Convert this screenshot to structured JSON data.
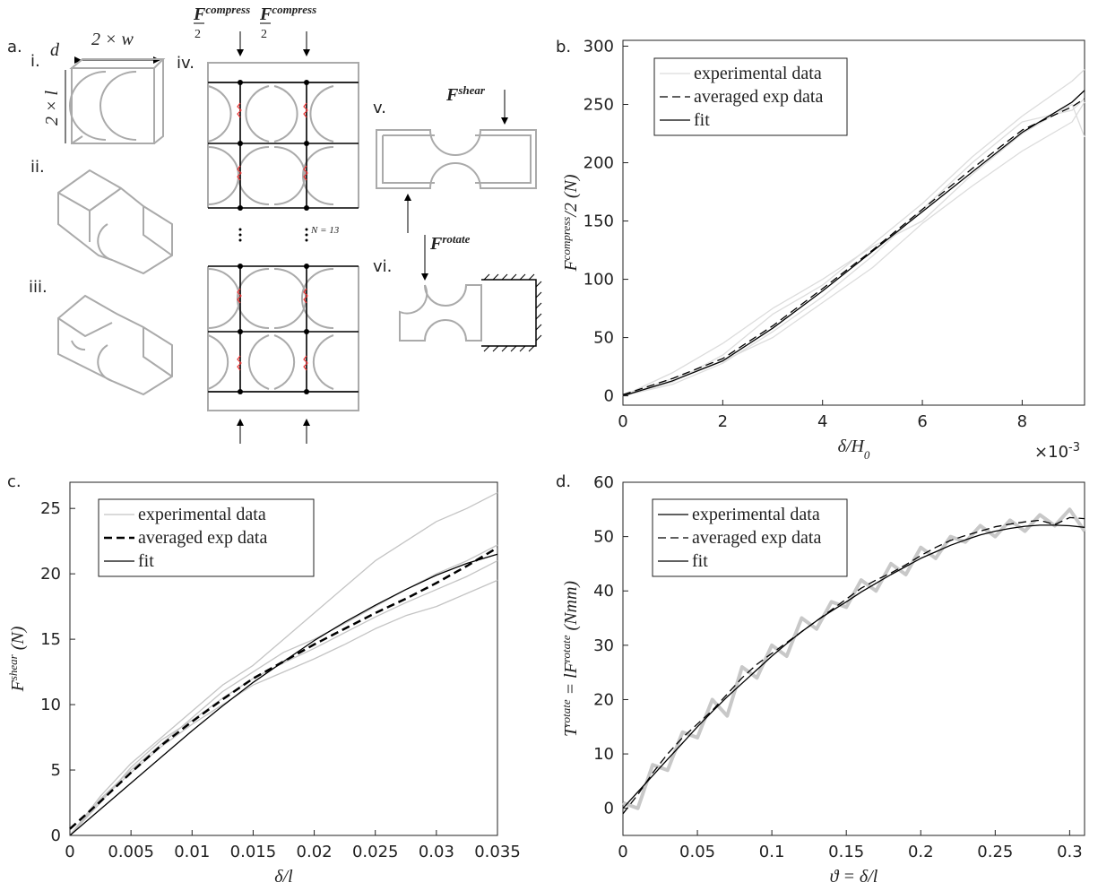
{
  "diagram": {
    "panel": "a.",
    "steps": [
      "i.",
      "ii.",
      "iii.",
      "iv.",
      "v.",
      "vi."
    ],
    "depth": "d",
    "width": "2 × w",
    "length": "2 × l",
    "compress_force": {
      "symbol": "F",
      "sup": "compress",
      "denominator": "2"
    },
    "shear_force": {
      "symbol": "F",
      "sup": "shear"
    },
    "rotate_force": {
      "symbol": "F",
      "sup": "rotate"
    },
    "cell_count": "N = 13"
  },
  "chart_data": [
    {
      "type": "line",
      "panel": "b.",
      "xlabel": [
        {
          "text": "δ/H"
        },
        {
          "text": "0",
          "sub": true
        }
      ],
      "ylabel": [
        {
          "text": "F"
        },
        {
          "text": "compress",
          "sup": true
        },
        {
          "text": "/2  (N)"
        }
      ],
      "x_multiplier": [
        {
          "text": "×10"
        },
        {
          "text": "-3",
          "sup": true
        }
      ],
      "xlim": [
        0,
        9.25
      ],
      "ylim": [
        -8,
        305
      ],
      "xticks": [
        0,
        2,
        4,
        6,
        8
      ],
      "yticks": [
        0,
        50,
        100,
        150,
        200,
        250,
        300
      ],
      "x": [
        0,
        1,
        2,
        3,
        4,
        5,
        6,
        7,
        8,
        9,
        9.25
      ],
      "series": [
        {
          "name": "experimental data",
          "color": "#dcdcdc",
          "values": [
            0,
            12,
            35,
            70,
            95,
            130,
            165,
            205,
            240,
            270,
            280
          ]
        },
        {
          "color": "#dcdcdc",
          "values": [
            0,
            20,
            45,
            75,
            100,
            128,
            150,
            190,
            225,
            250,
            222
          ]
        },
        {
          "color": "#dcdcdc",
          "values": [
            0,
            10,
            28,
            55,
            85,
            120,
            160,
            200,
            235,
            245,
            255
          ]
        },
        {
          "color": "#dcdcdc",
          "values": [
            0,
            15,
            30,
            50,
            80,
            110,
            148,
            180,
            210,
            235,
            252
          ]
        },
        {
          "name": "averaged exp data",
          "color": "#000000",
          "dash": true,
          "values": [
            1,
            15,
            32,
            60,
            92,
            125,
            160,
            195,
            228,
            248,
            255
          ]
        },
        {
          "name": "fit",
          "color": "#000000",
          "values": [
            0,
            13,
            30,
            58,
            90,
            124,
            158,
            192,
            226,
            252,
            262
          ]
        }
      ]
    },
    {
      "type": "line",
      "panel": "c.",
      "xlabel": [
        {
          "text": "δ/l"
        }
      ],
      "ylabel": [
        {
          "text": "F"
        },
        {
          "text": "shear",
          "sup": true
        },
        {
          "text": "  (N)"
        }
      ],
      "xlim": [
        0,
        0.035
      ],
      "ylim": [
        0,
        27
      ],
      "xticks": [
        0,
        0.005,
        0.01,
        0.015,
        0.02,
        0.025,
        0.03,
        0.035
      ],
      "yticks": [
        0,
        5,
        10,
        15,
        20,
        25
      ],
      "x": [
        0,
        0.0025,
        0.005,
        0.0075,
        0.01,
        0.0125,
        0.015,
        0.0175,
        0.02,
        0.0225,
        0.025,
        0.0275,
        0.03,
        0.0325,
        0.035
      ],
      "series": [
        {
          "name": "experimental data",
          "color": "#c4c4c4",
          "values": [
            0,
            3,
            5.5,
            7.5,
            9.5,
            11.5,
            13,
            15,
            17,
            19,
            21,
            22.5,
            24,
            25,
            26.2
          ]
        },
        {
          "color": "#c4c4c4",
          "values": [
            0,
            2.8,
            5,
            7,
            9,
            11,
            12.5,
            14,
            15,
            16.2,
            17.5,
            18.8,
            20,
            21,
            22.2
          ]
        },
        {
          "color": "#c4c4c4",
          "values": [
            0,
            2.5,
            5.2,
            7.3,
            8.8,
            10.5,
            12,
            13.2,
            14.3,
            15.5,
            16.7,
            17.8,
            18.8,
            19.8,
            21
          ]
        },
        {
          "color": "#c4c4c4",
          "values": [
            0,
            2.7,
            4.8,
            6.8,
            8.5,
            10,
            11.5,
            12.5,
            13.5,
            14.6,
            15.8,
            16.8,
            17.5,
            18.5,
            19.5
          ]
        },
        {
          "name": "averaged exp data",
          "color": "#000000",
          "dash": true,
          "width": 2.5,
          "values": [
            0.5,
            2.6,
            4.8,
            6.9,
            8.7,
            10.4,
            12,
            13.3,
            14.6,
            15.8,
            17,
            18.1,
            19.3,
            20.6,
            22
          ]
        },
        {
          "name": "fit",
          "color": "#000000",
          "values": [
            0,
            2,
            4,
            6,
            8,
            9.9,
            11.7,
            13.3,
            14.9,
            16.3,
            17.6,
            18.8,
            19.9,
            20.8,
            21.5
          ]
        }
      ]
    },
    {
      "type": "line",
      "panel": "d.",
      "xlabel": [
        {
          "text": "ϑ = δ/l"
        }
      ],
      "ylabel": [
        {
          "text": "T"
        },
        {
          "text": "rotate",
          "sup": true
        },
        {
          "text": " = lF"
        },
        {
          "text": "rotate",
          "sup": true
        },
        {
          "text": "  (Nmm)"
        }
      ],
      "xlim": [
        0,
        0.31
      ],
      "ylim": [
        -5,
        60
      ],
      "xticks": [
        0,
        0.05,
        0.1,
        0.15,
        0.2,
        0.25,
        0.3
      ],
      "yticks": [
        0,
        10,
        20,
        30,
        40,
        50,
        60
      ],
      "x": [
        0,
        0.01,
        0.02,
        0.03,
        0.04,
        0.05,
        0.06,
        0.07,
        0.08,
        0.09,
        0.1,
        0.11,
        0.12,
        0.13,
        0.14,
        0.15,
        0.16,
        0.17,
        0.18,
        0.19,
        0.2,
        0.21,
        0.22,
        0.23,
        0.24,
        0.25,
        0.26,
        0.27,
        0.28,
        0.29,
        0.3,
        0.31
      ],
      "series": [
        {
          "name": "experimental data",
          "color": "#c8c8c8",
          "legend_color": "#000000",
          "width": 4,
          "values": [
            1,
            0,
            8,
            7,
            14,
            13,
            20,
            17,
            26,
            24,
            30,
            28,
            35,
            33,
            38,
            37,
            42,
            40,
            45,
            43,
            48,
            46,
            50,
            49,
            52,
            50,
            53,
            51,
            54,
            52,
            55,
            51
          ]
        },
        {
          "name": "averaged exp data",
          "color": "#000000",
          "dash": true,
          "values": [
            -1,
            2.5,
            6.5,
            10,
            13,
            15.5,
            18,
            21,
            24,
            26.5,
            28.5,
            30.5,
            32.5,
            34.5,
            36.5,
            38.5,
            40.5,
            42,
            43.3,
            44.8,
            46.5,
            48,
            49.3,
            50.2,
            51,
            51.8,
            52.3,
            52.7,
            53,
            52.2,
            53.5,
            53.3
          ]
        },
        {
          "name": "fit",
          "color": "#000000",
          "values": [
            0,
            3,
            6,
            9,
            12,
            15,
            17.8,
            20.5,
            23,
            25.5,
            28,
            30.3,
            32.5,
            34.5,
            36.3,
            38,
            39.8,
            41.4,
            43,
            44.5,
            46,
            47.2,
            48.4,
            49.4,
            50.3,
            51,
            51.5,
            51.9,
            52.1,
            52.1,
            52,
            51.7
          ]
        }
      ]
    }
  ]
}
